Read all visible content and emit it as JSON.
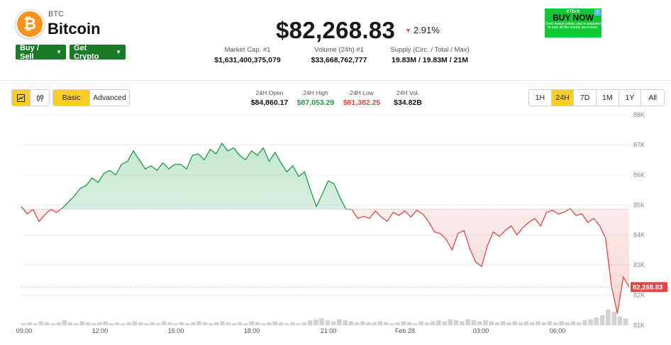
{
  "coin": {
    "symbol": "BTC",
    "name": "Bitcoin",
    "logo_glyph": "₿"
  },
  "actions": {
    "buy_sell": "Buy / Sell",
    "get_crypto": "Get Crypto"
  },
  "price": {
    "value": "$82,268.83",
    "change": "2.91%",
    "direction": "down"
  },
  "stats": [
    {
      "label": "Market Cap. #1",
      "value": "$1,631,400,375,079"
    },
    {
      "label": "Volume (24h) #1",
      "value": "$33,668,762,777"
    },
    {
      "label": "Supply (Circ. / Total / Max)",
      "value": "19.83M / 19.83M / 21M"
    }
  ],
  "ad": {
    "brand": "eToro",
    "cta": "BUY NOW",
    "disclaimer": "Don't invest unless you're prepared to lose all the money you invest."
  },
  "toolbar": {
    "chart_types": [
      "line-chart-icon",
      "candlestick-icon"
    ],
    "modes": [
      "Basic",
      "Advanced"
    ],
    "ranges": [
      "1H",
      "24H",
      "7D",
      "1M",
      "1Y",
      "All"
    ],
    "active_range": "24H"
  },
  "day_stats": [
    {
      "label": "24H Open",
      "value": "$84,860.17",
      "tone": "neutral"
    },
    {
      "label": "24H High",
      "value": "$87,053.29",
      "tone": "up"
    },
    {
      "label": "24H Low",
      "value": "$81,382.25",
      "tone": "down"
    },
    {
      "label": "24H Vol.",
      "value": "$34.82B",
      "tone": "neutral"
    }
  ],
  "colors": {
    "up": "#1e9b4a",
    "down": "#e04848",
    "accent": "#f9ce29",
    "button": "#1b7a2a"
  },
  "chart_data": {
    "type": "area",
    "baseline": 84860.17,
    "ylim": [
      81000,
      88000
    ],
    "y_ticks": [
      "81K",
      "82K",
      "83K",
      "84K",
      "85K",
      "86K",
      "87K",
      "88K"
    ],
    "x_ticks": [
      "09:00",
      "12:00",
      "15:00",
      "18:00",
      "21:00",
      "Feb 28",
      "03:00",
      "06:00"
    ],
    "last_price_label": "82,268.83",
    "series": [
      84950,
      84700,
      84850,
      84450,
      84680,
      84850,
      84750,
      84900,
      85100,
      85300,
      85550,
      85650,
      85900,
      85750,
      86050,
      86150,
      86000,
      86350,
      86450,
      86800,
      86500,
      86200,
      86300,
      86150,
      86400,
      86200,
      86350,
      86350,
      86200,
      86650,
      86700,
      86500,
      86850,
      86700,
      87050,
      86800,
      86900,
      86650,
      86500,
      86800,
      86650,
      86900,
      86450,
      86750,
      86400,
      86100,
      86300,
      85950,
      86100,
      85500,
      84950,
      85350,
      85800,
      85700,
      85250,
      84860,
      84850,
      84550,
      84620,
      84550,
      84800,
      84600,
      84450,
      84750,
      84650,
      84800,
      84600,
      84820,
      84700,
      84450,
      84100,
      84050,
      83850,
      83500,
      84050,
      84150,
      83550,
      83100,
      82950,
      83650,
      84100,
      83950,
      84150,
      84300,
      84000,
      84250,
      84420,
      84550,
      84300,
      84750,
      84820,
      84700,
      84760,
      84880,
      84650,
      84700,
      84420,
      84550,
      84300,
      83900,
      82300,
      81382,
      82600,
      82268
    ],
    "volume": [
      2,
      3,
      2,
      4,
      3,
      2,
      3,
      5,
      3,
      2,
      4,
      3,
      2,
      3,
      4,
      2,
      3,
      2,
      3,
      4,
      3,
      2,
      3,
      2,
      4,
      3,
      2,
      3,
      2,
      3,
      4,
      3,
      2,
      3,
      4,
      3,
      2,
      3,
      2,
      4,
      3,
      2,
      3,
      4,
      3,
      2,
      3,
      2,
      3,
      5,
      6,
      7,
      5,
      4,
      6,
      5,
      4,
      3,
      4,
      3,
      3,
      4,
      3,
      2,
      3,
      4,
      3,
      2,
      4,
      3,
      4,
      5,
      4,
      6,
      5,
      4,
      6,
      5,
      4,
      5,
      4,
      3,
      4,
      3,
      4,
      3,
      4,
      3,
      4,
      3,
      4,
      3,
      4,
      3,
      4,
      3,
      5,
      6,
      8,
      10,
      16,
      14,
      9,
      7
    ]
  }
}
